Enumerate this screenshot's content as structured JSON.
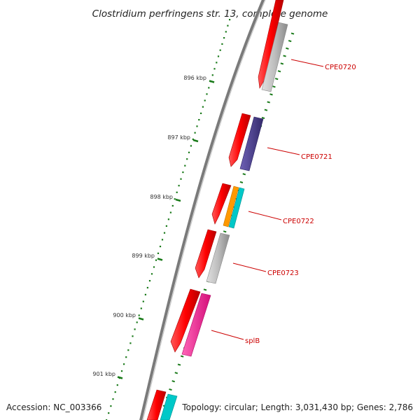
{
  "title": "Clostridium perfringens str. 13, complete genome",
  "footer": {
    "accession": "Accession: NC_003366",
    "summary": "Topology: circular; Length: 3,031,430 bp; Genes: 2,786"
  },
  "scale_ticks": [
    {
      "label": "896 kbp"
    },
    {
      "label": "897 kbp"
    },
    {
      "label": "898 kbp"
    },
    {
      "label": "899 kbp"
    },
    {
      "label": "900 kbp"
    },
    {
      "label": "901 kbp"
    }
  ],
  "genes": [
    {
      "label": "CPE0720",
      "cog_color": "#bdbdbd"
    },
    {
      "label": "CPE0721",
      "cog_color": "#4b3f8f"
    },
    {
      "label": "CPE0722",
      "cog_color": "#ff9900"
    },
    {
      "label": "CPE0723",
      "cog_color": "#bdbdbd"
    },
    {
      "label": "splB",
      "cog_color": "#ff1493"
    }
  ],
  "colors": {
    "cds": "#ff0000",
    "label": "#cc0000",
    "tick": "#1a7a1a",
    "backbone": "#808080",
    "cyan": "#00c8c8"
  }
}
